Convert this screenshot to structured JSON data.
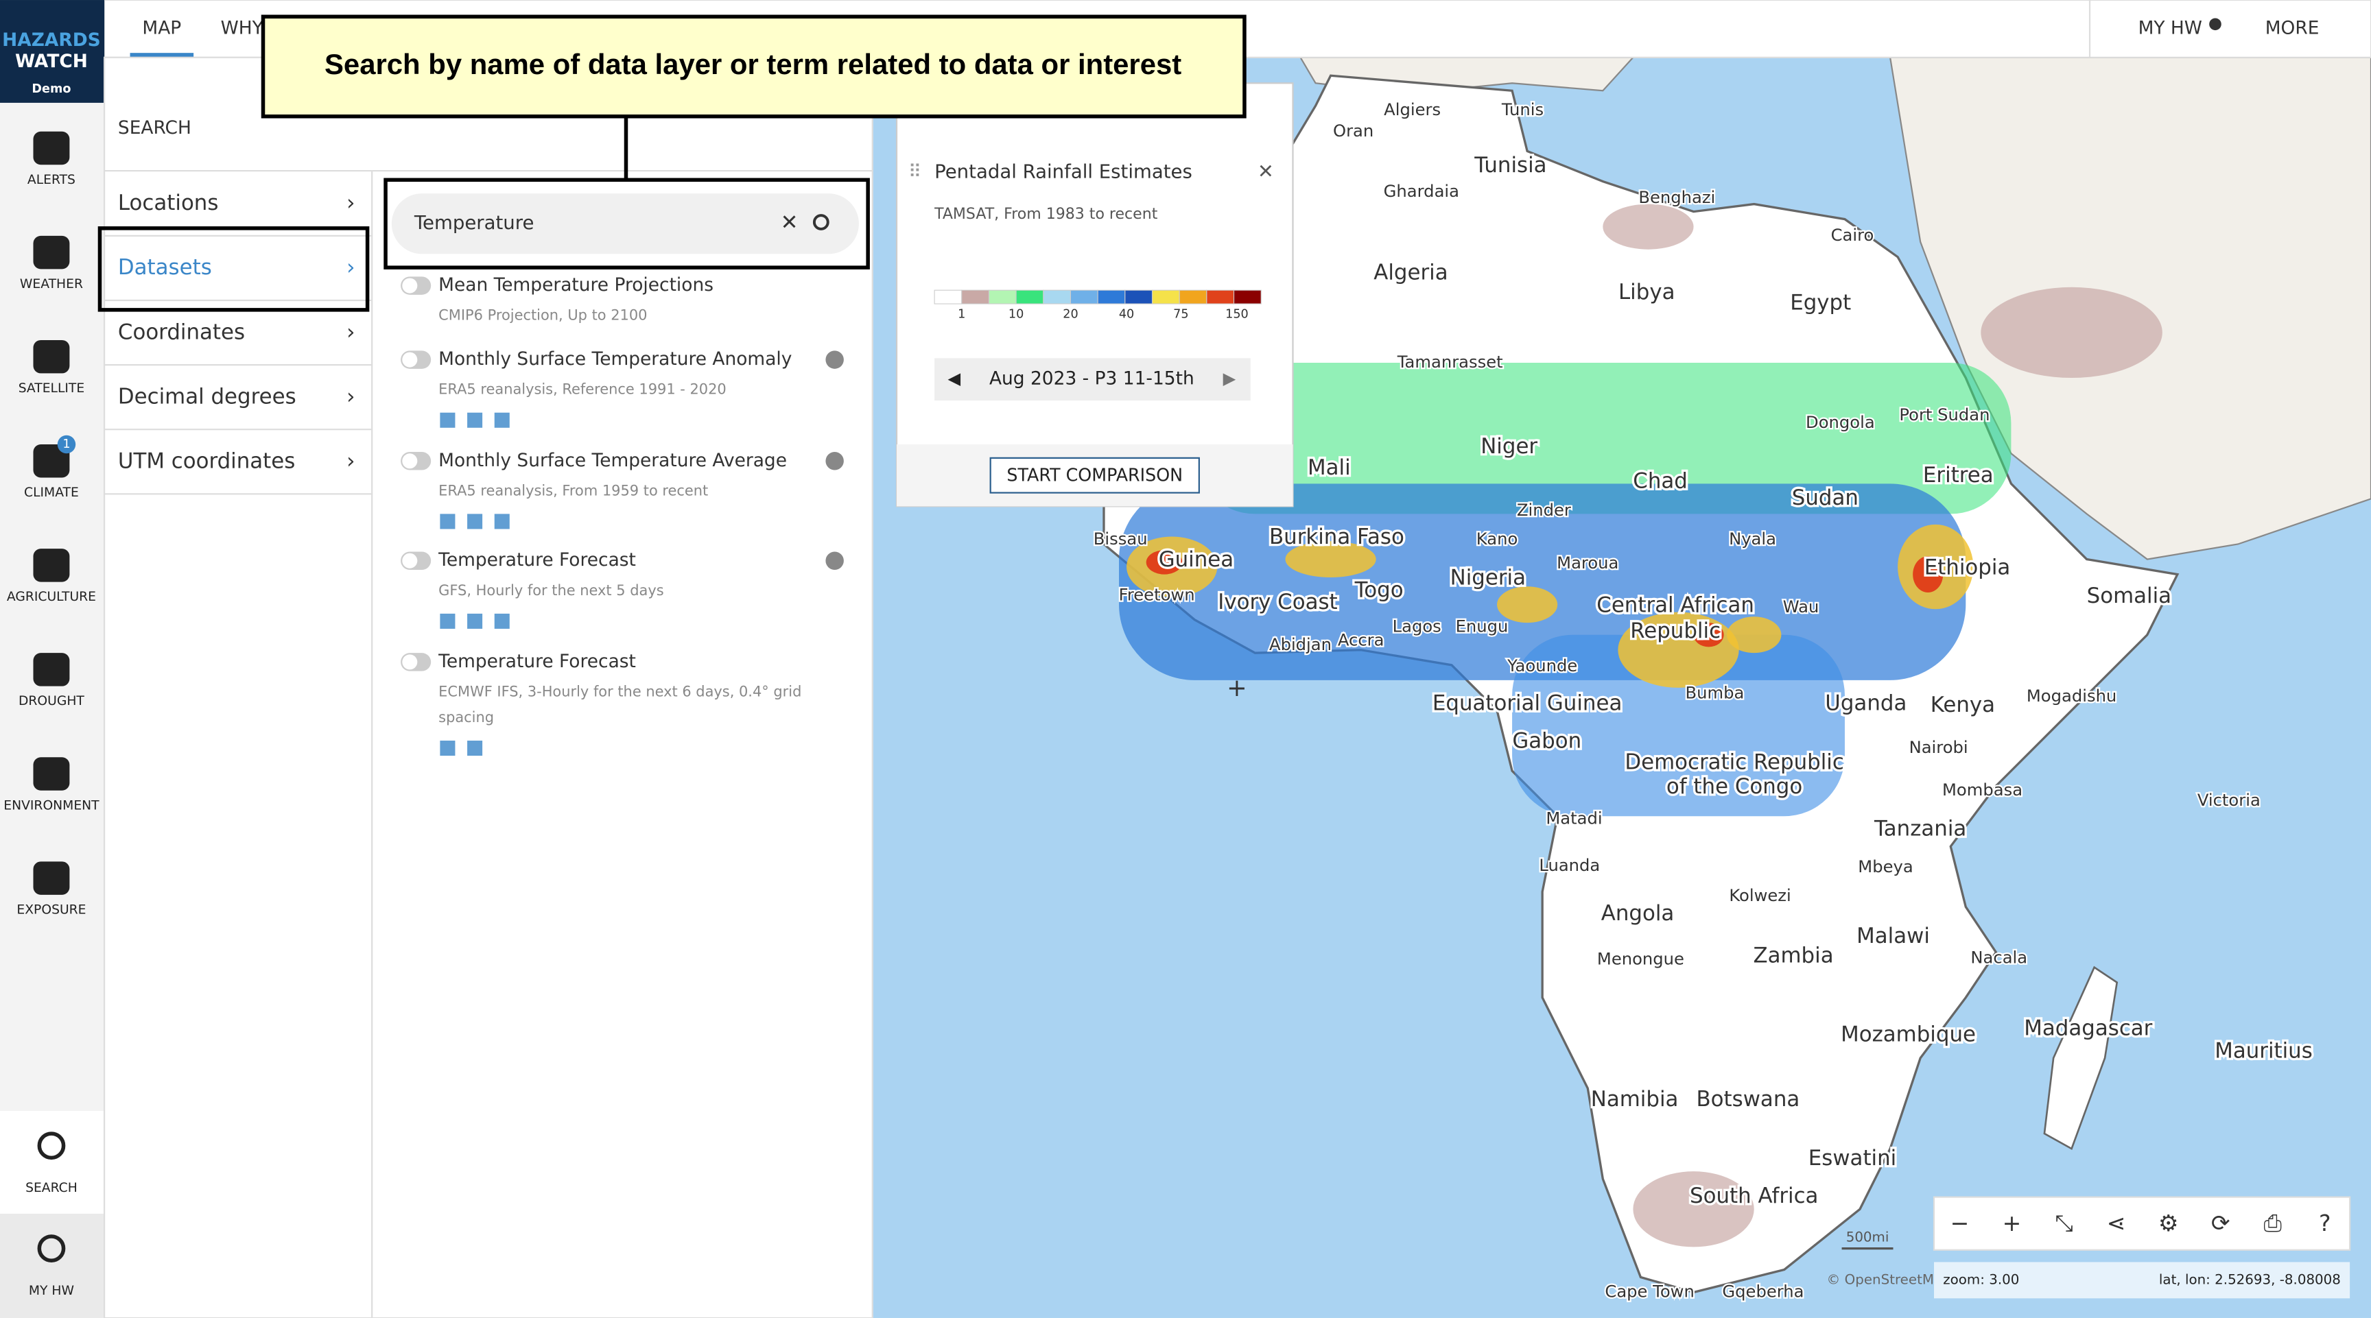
{
  "app": {
    "logo": [
      "HAZARDS",
      "WATCH"
    ],
    "edition": "Demo"
  },
  "top_nav": {
    "tabs": [
      "MAP",
      "WHY"
    ],
    "right": [
      "MY HW",
      "MORE"
    ]
  },
  "sidebar": {
    "items": [
      "ALERTS",
      "WEATHER",
      "SATELLITE",
      "CLIMATE",
      "AGRICULTURE",
      "DROUGHT",
      "ENVIRONMENT",
      "EXPOSURE"
    ],
    "climate_badge": "1",
    "bottom": [
      "SEARCH",
      "MY HW"
    ]
  },
  "search": {
    "title": "SEARCH",
    "menu": [
      "Locations",
      "Datasets",
      "Coordinates",
      "Decimal degrees",
      "UTM coordinates"
    ],
    "query": "Temperature",
    "results": [
      {
        "name": "Mean Temperature Projections",
        "detail": [
          "CMIP6 Projection, Up to 2100"
        ]
      },
      {
        "name": "Monthly Surface Temperature Anomaly",
        "detail": [
          "ERA5 reanalysis, Reference 1991 - 2020"
        ]
      },
      {
        "name": "Monthly Surface Temperature Average",
        "detail": [
          "ERA5 reanalysis, From 1959 to recent"
        ]
      },
      {
        "name": "Temperature Forecast",
        "detail": [
          "GFS, Hourly for the next 5 days"
        ]
      },
      {
        "name": "Temperature Forecast",
        "detail": [
          "ECMWF IFS, 3-Hourly for the next 6 days, 0.4° grid",
          "spacing"
        ]
      }
    ]
  },
  "callout": "Search by name of data layer or term related to data or interest",
  "layer_card": {
    "title": "Pentadal Rainfall Estimates",
    "source": "TAMSAT, From 1983 to recent",
    "legend_ticks": [
      "1",
      "10",
      "20",
      "40",
      "75",
      "150"
    ],
    "period": "Aug 2023 - P3 11-15th",
    "button": "START COMPARISON"
  },
  "map": {
    "labels": [
      "Algiers",
      "Tunis",
      "Oran",
      "Tunisia",
      "Ghardaia",
      "Benghazi",
      "Cairo",
      "Algeria",
      "Libya",
      "Egypt",
      "Tamanrasset",
      "Dongola",
      "Port Sudan",
      "Niger",
      "Mali",
      "Chad",
      "Sudan",
      "Eritrea",
      "Burkina Faso",
      "Bissau",
      "Zinder",
      "Kano",
      "Nyala",
      "Guinea",
      "Maroua",
      "Nigeria",
      "Ethiopia",
      "Togo",
      "Freetown",
      "Ivory Coast",
      "Central African",
      "Republic",
      "Wau",
      "Somalia",
      "Lagos",
      "Enugu",
      "Abidjan",
      "Accra",
      "Yaounde",
      "Bumba",
      "Equatorial Guinea",
      "Uganda",
      "Kenya",
      "Mogadishu",
      "Gabon",
      "Nairobi",
      "Democratic Republic",
      "of the Congo",
      "Mombasa",
      "Victoria",
      "Matadi",
      "Tanzania",
      "Luanda",
      "Mbeya",
      "Kolwezi",
      "Angola",
      "Malawi",
      "Menongue",
      "Zambia",
      "Nacala",
      "Mozambique",
      "Madagascar",
      "Mauritius",
      "Namibia",
      "Botswana",
      "Eswatini",
      "South Africa",
      "Cape Town",
      "Gqeberha"
    ],
    "scale": "500mi",
    "attribution": "© OpenStreetMap",
    "zoom": "zoom: 3.00",
    "coords": "lat, lon: 2.52693, -8.08008"
  }
}
